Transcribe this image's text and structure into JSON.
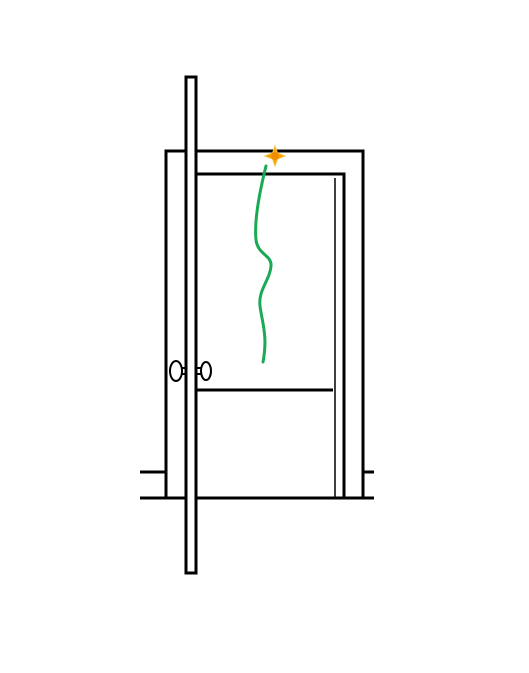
{
  "diagram": {
    "colors": {
      "line": "#000000",
      "wire": "#1aaa55",
      "spark": "#f5a400",
      "background": "#ffffff"
    },
    "icons": {
      "spark": "spark-icon",
      "door_knob": "door-knob-icon"
    }
  }
}
